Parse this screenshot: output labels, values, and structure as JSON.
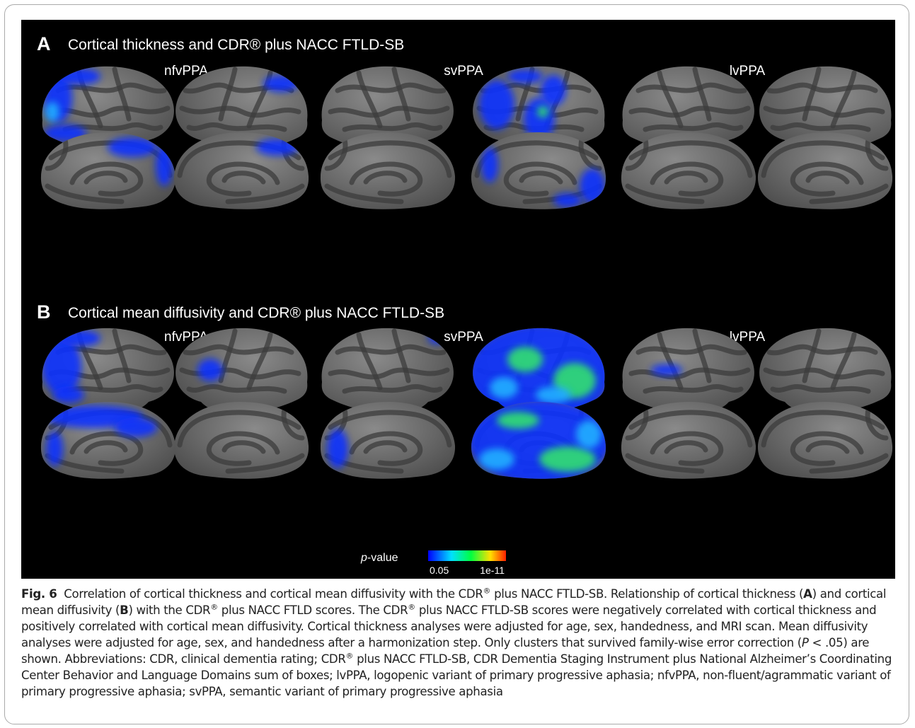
{
  "panels": [
    {
      "label": "A",
      "title": "Cortical thickness and CDR® plus NACC FTLD-SB",
      "groups": [
        "nfvPPA",
        "svPPA",
        "lvPPA"
      ]
    },
    {
      "label": "B",
      "title": "Cortical mean diffusivity and CDR® plus NACC FTLD-SB",
      "groups": [
        "nfvPPA",
        "svPPA",
        "lvPPA"
      ]
    }
  ],
  "colorbar": {
    "title_italic": "p",
    "title_rest": "-value",
    "min_label": "0.05",
    "max_label": "1e-11"
  },
  "caption": {
    "label": "Fig. 6",
    "runs": [
      "Correlation of cortical thickness and cortical mean diffusivity with the CDR",
      "®",
      " plus NACC FTLD-SB. Relationship of cortical thickness (",
      "A",
      ") and cortical mean diffusivity (",
      "B",
      ") with the CDR",
      "®",
      " plus NACC FTLD scores. The CDR",
      "®",
      " plus NACC FTLD-SB scores were negatively correlated with cortical thickness and positively correlated with cortical mean diffusivity. Cortical thickness analyses were adjusted for age, sex, handedness, and MRI scan. Mean diffusivity analyses were adjusted for age, sex, and handedness after a harmonization step. Only clusters that survived family-wise error correction (",
      "P",
      " < .05) are shown. Abbreviations: CDR, clinical dementia rating; CDR",
      "®",
      " plus NACC FTLD-SB, CDR Dementia Staging Instrument plus National Alzheimer’s Coordinating Center Behavior and Language Domains sum of boxes; lvPPA, logopenic variant of primary progressive aphasia; nfvPPA, non-fluent/agrammatic variant of primary progressive aphasia; svPPA, semantic variant of primary progressive aphasia"
    ]
  }
}
